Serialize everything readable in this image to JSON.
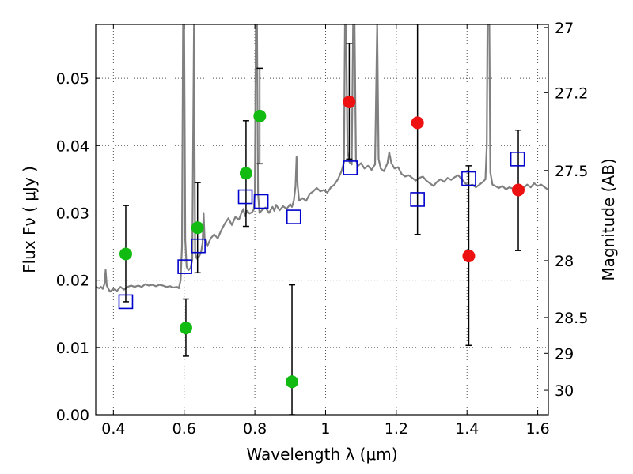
{
  "chart_data": {
    "type": "scatter",
    "xlabel": "Wavelength  λ (μm)",
    "ylabel_left": "Flux  Fν  ( μJy )",
    "ylabel_right": "Magnitude (AB)",
    "xlim": [
      0.35,
      1.63
    ],
    "ylim": [
      0.0,
      0.058
    ],
    "grid": true,
    "x_ticks": [
      {
        "value": 0.4,
        "label": "0.4"
      },
      {
        "value": 0.6,
        "label": "0.6"
      },
      {
        "value": 0.8,
        "label": "0.8"
      },
      {
        "value": 1.0,
        "label": "1"
      },
      {
        "value": 1.2,
        "label": "1.2"
      },
      {
        "value": 1.4,
        "label": "1.4"
      },
      {
        "value": 1.6,
        "label": "1.6"
      }
    ],
    "y_ticks": [
      {
        "value": 0.0,
        "label": "0.00"
      },
      {
        "value": 0.01,
        "label": "0.01"
      },
      {
        "value": 0.02,
        "label": "0.02"
      },
      {
        "value": 0.03,
        "label": "0.03"
      },
      {
        "value": 0.04,
        "label": "0.04"
      },
      {
        "value": 0.05,
        "label": "0.05"
      }
    ],
    "right_ticks": [
      {
        "mag": 27.0,
        "label": "27"
      },
      {
        "mag": 27.2,
        "label": "27.2"
      },
      {
        "mag": 27.5,
        "label": "27.5"
      },
      {
        "mag": 28.0,
        "label": "28"
      },
      {
        "mag": 28.5,
        "label": "28.5"
      },
      {
        "mag": 29.0,
        "label": "29"
      },
      {
        "mag": 30.0,
        "label": "30"
      }
    ],
    "colors": {
      "green": "#11bb11",
      "red": "#ee1111",
      "blue": "#0000cc",
      "spectrum": "#808080",
      "errorbar": "#000000"
    },
    "series": [
      {
        "name": "green-points",
        "marker": "circle",
        "color": "#11bb11",
        "points": [
          {
            "x": 0.435,
            "y": 0.0239
          },
          {
            "x": 0.605,
            "y": 0.0129
          },
          {
            "x": 0.638,
            "y": 0.0278
          },
          {
            "x": 0.775,
            "y": 0.0359
          },
          {
            "x": 0.814,
            "y": 0.0444
          },
          {
            "x": 0.905,
            "y": 0.0049
          }
        ]
      },
      {
        "name": "red-points",
        "marker": "circle",
        "color": "#ee1111",
        "points": [
          {
            "x": 1.067,
            "y": 0.0465
          },
          {
            "x": 1.26,
            "y": 0.0434
          },
          {
            "x": 1.405,
            "y": 0.0236
          },
          {
            "x": 1.545,
            "y": 0.0334
          }
        ]
      },
      {
        "name": "blue-model-boxes",
        "marker": "square",
        "color": "#0000cc",
        "points": [
          {
            "x": 0.435,
            "y": 0.0168
          },
          {
            "x": 0.602,
            "y": 0.022
          },
          {
            "x": 0.64,
            "y": 0.0251
          },
          {
            "x": 0.773,
            "y": 0.0324
          },
          {
            "x": 0.818,
            "y": 0.0317
          },
          {
            "x": 0.91,
            "y": 0.0294
          },
          {
            "x": 1.07,
            "y": 0.0367
          },
          {
            "x": 1.26,
            "y": 0.032
          },
          {
            "x": 1.405,
            "y": 0.0351
          },
          {
            "x": 1.543,
            "y": 0.038
          }
        ]
      }
    ],
    "errorbars": [
      {
        "x": 0.435,
        "low": 0.0168,
        "high": 0.0311
      },
      {
        "x": 0.605,
        "low": 0.0087,
        "high": 0.0172
      },
      {
        "x": 0.638,
        "low": 0.0211,
        "high": 0.0345
      },
      {
        "x": 0.775,
        "low": 0.028,
        "high": 0.0437
      },
      {
        "x": 0.814,
        "low": 0.0373,
        "high": 0.0515
      },
      {
        "x": 0.905,
        "low": 0.0,
        "high": 0.0193
      },
      {
        "x": 1.067,
        "low": 0.038,
        "high": 0.0552
      },
      {
        "x": 1.26,
        "low": 0.0268,
        "high": 0.06
      },
      {
        "x": 1.405,
        "low": 0.0103,
        "high": 0.037
      },
      {
        "x": 1.545,
        "low": 0.0244,
        "high": 0.0423
      }
    ],
    "spectrum": [
      [
        0.35,
        0.019
      ],
      [
        0.36,
        0.0188
      ],
      [
        0.365,
        0.019
      ],
      [
        0.37,
        0.0187
      ],
      [
        0.375,
        0.0195
      ],
      [
        0.378,
        0.0215
      ],
      [
        0.381,
        0.0192
      ],
      [
        0.39,
        0.0183
      ],
      [
        0.4,
        0.0187
      ],
      [
        0.41,
        0.0184
      ],
      [
        0.42,
        0.019
      ],
      [
        0.43,
        0.0186
      ],
      [
        0.44,
        0.019
      ],
      [
        0.45,
        0.0192
      ],
      [
        0.46,
        0.019
      ],
      [
        0.47,
        0.0192
      ],
      [
        0.48,
        0.019
      ],
      [
        0.49,
        0.0194
      ],
      [
        0.5,
        0.0192
      ],
      [
        0.51,
        0.0193
      ],
      [
        0.52,
        0.0191
      ],
      [
        0.53,
        0.0193
      ],
      [
        0.54,
        0.0192
      ],
      [
        0.55,
        0.019
      ],
      [
        0.56,
        0.0191
      ],
      [
        0.57,
        0.0189
      ],
      [
        0.58,
        0.019
      ],
      [
        0.585,
        0.0188
      ],
      [
        0.59,
        0.02
      ],
      [
        0.594,
        0.025
      ],
      [
        0.597,
        0.058
      ],
      [
        0.6,
        0.058
      ],
      [
        0.603,
        0.026
      ],
      [
        0.607,
        0.022
      ],
      [
        0.612,
        0.0215
      ],
      [
        0.618,
        0.0218
      ],
      [
        0.623,
        0.023
      ],
      [
        0.628,
        0.058
      ],
      [
        0.631,
        0.024
      ],
      [
        0.636,
        0.0232
      ],
      [
        0.642,
        0.0235
      ],
      [
        0.648,
        0.0242
      ],
      [
        0.652,
        0.0255
      ],
      [
        0.655,
        0.03
      ],
      [
        0.658,
        0.0262
      ],
      [
        0.665,
        0.025
      ],
      [
        0.675,
        0.0262
      ],
      [
        0.685,
        0.0268
      ],
      [
        0.695,
        0.0262
      ],
      [
        0.705,
        0.0274
      ],
      [
        0.715,
        0.0284
      ],
      [
        0.725,
        0.0292
      ],
      [
        0.735,
        0.0282
      ],
      [
        0.745,
        0.0294
      ],
      [
        0.755,
        0.029
      ],
      [
        0.762,
        0.03
      ],
      [
        0.768,
        0.0306
      ],
      [
        0.772,
        0.0295
      ],
      [
        0.778,
        0.0303
      ],
      [
        0.785,
        0.0299
      ],
      [
        0.792,
        0.0301
      ],
      [
        0.797,
        0.0305
      ],
      [
        0.8,
        0.033
      ],
      [
        0.803,
        0.058
      ],
      [
        0.806,
        0.058
      ],
      [
        0.809,
        0.033
      ],
      [
        0.813,
        0.03
      ],
      [
        0.82,
        0.0304
      ],
      [
        0.83,
        0.0308
      ],
      [
        0.84,
        0.03
      ],
      [
        0.85,
        0.0309
      ],
      [
        0.855,
        0.0303
      ],
      [
        0.86,
        0.0312
      ],
      [
        0.87,
        0.0304
      ],
      [
        0.88,
        0.031
      ],
      [
        0.89,
        0.0306
      ],
      [
        0.9,
        0.0313
      ],
      [
        0.905,
        0.0309
      ],
      [
        0.91,
        0.0318
      ],
      [
        0.915,
        0.034
      ],
      [
        0.918,
        0.0383
      ],
      [
        0.921,
        0.034
      ],
      [
        0.925,
        0.0318
      ],
      [
        0.935,
        0.0322
      ],
      [
        0.945,
        0.0318
      ],
      [
        0.955,
        0.0328
      ],
      [
        0.965,
        0.0332
      ],
      [
        0.975,
        0.0337
      ],
      [
        0.985,
        0.0332
      ],
      [
        0.995,
        0.0334
      ],
      [
        1.005,
        0.033
      ],
      [
        1.015,
        0.0338
      ],
      [
        1.025,
        0.0342
      ],
      [
        1.035,
        0.035
      ],
      [
        1.045,
        0.0362
      ],
      [
        1.052,
        0.0375
      ],
      [
        1.055,
        0.058
      ],
      [
        1.058,
        0.058
      ],
      [
        1.062,
        0.039
      ],
      [
        1.068,
        0.0375
      ],
      [
        1.074,
        0.0372
      ],
      [
        1.078,
        0.058
      ],
      [
        1.082,
        0.058
      ],
      [
        1.086,
        0.0378
      ],
      [
        1.092,
        0.037
      ],
      [
        1.1,
        0.0374
      ],
      [
        1.11,
        0.0366
      ],
      [
        1.12,
        0.037
      ],
      [
        1.13,
        0.0364
      ],
      [
        1.14,
        0.0372
      ],
      [
        1.146,
        0.058
      ],
      [
        1.15,
        0.038
      ],
      [
        1.156,
        0.0366
      ],
      [
        1.165,
        0.0362
      ],
      [
        1.175,
        0.0374
      ],
      [
        1.18,
        0.039
      ],
      [
        1.186,
        0.0374
      ],
      [
        1.195,
        0.0366
      ],
      [
        1.205,
        0.0368
      ],
      [
        1.215,
        0.0358
      ],
      [
        1.225,
        0.0354
      ],
      [
        1.235,
        0.0356
      ],
      [
        1.245,
        0.0352
      ],
      [
        1.255,
        0.0348
      ],
      [
        1.265,
        0.0352
      ],
      [
        1.275,
        0.0354
      ],
      [
        1.285,
        0.0348
      ],
      [
        1.295,
        0.0344
      ],
      [
        1.305,
        0.034
      ],
      [
        1.315,
        0.0346
      ],
      [
        1.325,
        0.035
      ],
      [
        1.335,
        0.0346
      ],
      [
        1.345,
        0.0352
      ],
      [
        1.355,
        0.0349
      ],
      [
        1.365,
        0.0353
      ],
      [
        1.375,
        0.0356
      ],
      [
        1.385,
        0.035
      ],
      [
        1.395,
        0.0344
      ],
      [
        1.405,
        0.034
      ],
      [
        1.415,
        0.0342
      ],
      [
        1.425,
        0.0338
      ],
      [
        1.435,
        0.0342
      ],
      [
        1.445,
        0.0346
      ],
      [
        1.452,
        0.035
      ],
      [
        1.456,
        0.04
      ],
      [
        1.458,
        0.058
      ],
      [
        1.463,
        0.058
      ],
      [
        1.466,
        0.036
      ],
      [
        1.472,
        0.0342
      ],
      [
        1.48,
        0.034
      ],
      [
        1.49,
        0.0337
      ],
      [
        1.5,
        0.034
      ],
      [
        1.51,
        0.0335
      ],
      [
        1.52,
        0.0338
      ],
      [
        1.53,
        0.0336
      ],
      [
        1.54,
        0.0339
      ],
      [
        1.55,
        0.034
      ],
      [
        1.56,
        0.0337
      ],
      [
        1.57,
        0.0342
      ],
      [
        1.58,
        0.0338
      ],
      [
        1.59,
        0.0344
      ],
      [
        1.6,
        0.034
      ],
      [
        1.61,
        0.0342
      ],
      [
        1.62,
        0.0338
      ],
      [
        1.63,
        0.0334
      ]
    ]
  }
}
